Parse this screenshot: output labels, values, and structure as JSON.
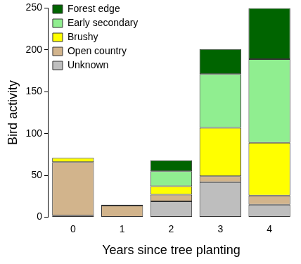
{
  "chart_data": {
    "type": "bar",
    "stacked": true,
    "grid": false,
    "legend": "top-left",
    "x_label": "Years since tree planting",
    "y_label": "Bird activity",
    "categories": [
      "0",
      "1",
      "2",
      "3",
      "4"
    ],
    "ylim": [
      0,
      250
    ],
    "yticks": [
      0,
      50,
      100,
      150,
      200,
      250
    ],
    "series": [
      {
        "name": "Unknown",
        "color": "#bebebe",
        "values": [
          2,
          0,
          19,
          42,
          15
        ]
      },
      {
        "name": "Open country",
        "color": "#d2b48c",
        "values": [
          64,
          14,
          8,
          7,
          11
        ]
      },
      {
        "name": "Brushy",
        "color": "#ffff00",
        "values": [
          5,
          0,
          10,
          58,
          63
        ]
      },
      {
        "name": "Early secondary",
        "color": "#90ee90",
        "values": [
          0,
          0,
          18,
          64,
          100
        ]
      },
      {
        "name": "Forest edge",
        "color": "#006400",
        "values": [
          0,
          1,
          13,
          30,
          61
        ]
      }
    ]
  }
}
